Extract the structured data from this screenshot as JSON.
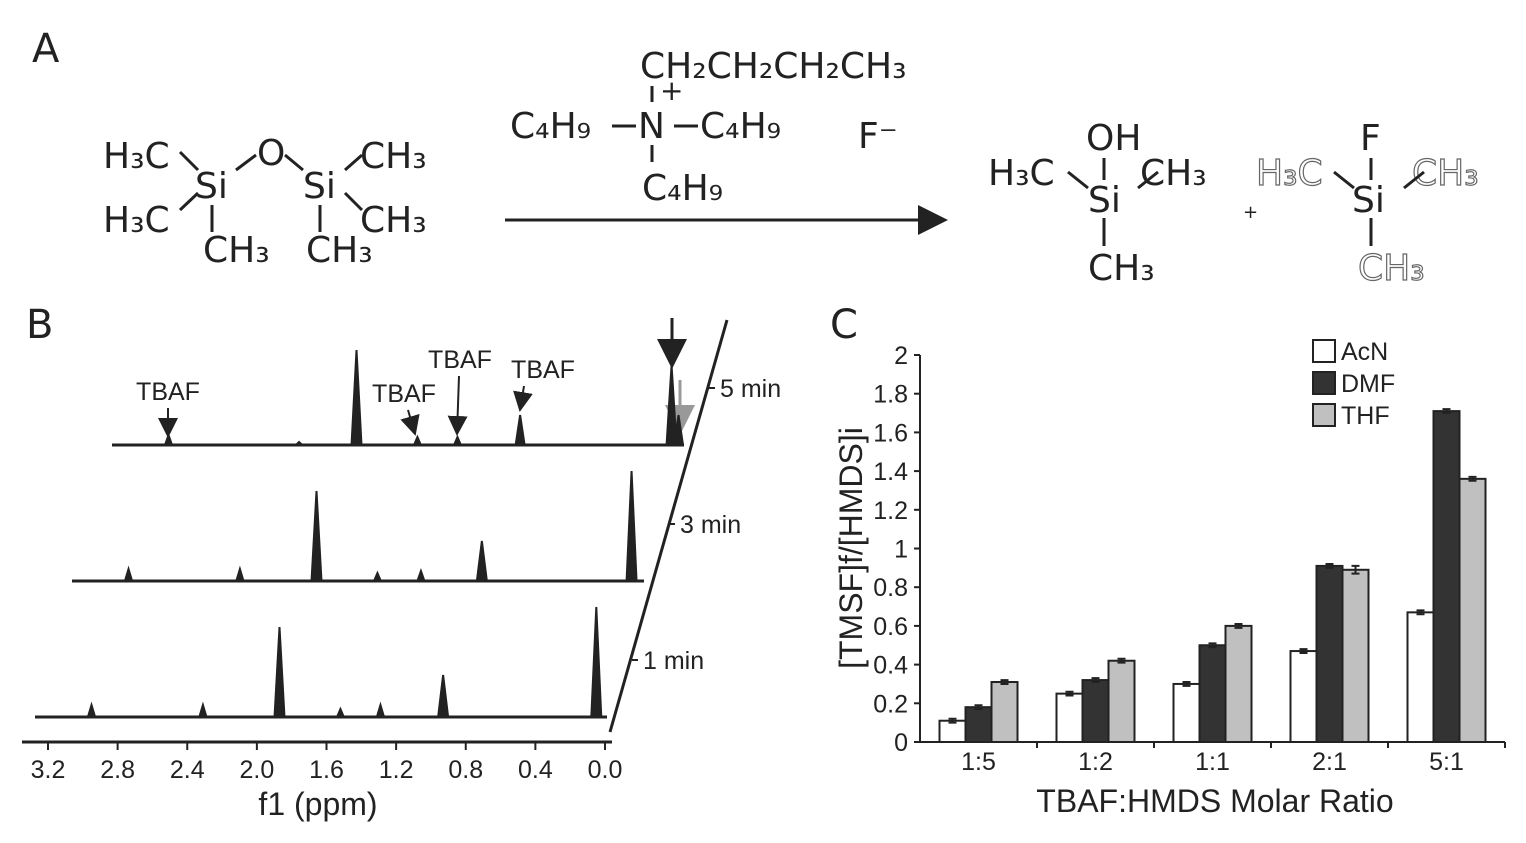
{
  "panel_a": {
    "label": "A",
    "hmds": [
      "H₃C",
      "H₃C",
      "CH₃",
      "Si",
      "O",
      "Si",
      "CH₃",
      "CH₃",
      "CH₃"
    ],
    "tbaf": [
      "CH₂CH₂CH₂CH₃",
      "+",
      "C₄H₉",
      "N",
      "C₄H₉",
      "C₄H₉",
      "F⁻"
    ],
    "tmsoh": [
      "OH",
      "H₃C",
      "Si",
      "CH₃",
      "CH₃"
    ],
    "plus": "+",
    "tmsf": [
      "F",
      "H₃C",
      "Si",
      "CH₃",
      "CH₃"
    ]
  },
  "panel_b": {
    "label": "B",
    "x_label": "f1 (ppm)",
    "xticks": [
      3.2,
      2.8,
      2.4,
      {
        "value": 2,
        "label": "2.0"
      },
      1.6,
      1.2,
      0.8,
      0.4,
      {
        "value": 0,
        "label": "0.0"
      }
    ],
    "annotations": [
      "TBAF",
      "TBAF",
      "TBAF",
      "TBAF"
    ],
    "spectra": [
      {
        "label": "1 min",
        "peaks": [
          {
            "ppm": 2.95,
            "height": 12
          },
          {
            "ppm": 2.31,
            "height": 12
          },
          {
            "ppm": 1.87,
            "height": 90
          },
          {
            "ppm": 1.52,
            "height": 8
          },
          {
            "ppm": 1.29,
            "height": 12
          },
          {
            "ppm": 0.93,
            "height": 42
          },
          {
            "ppm": 0.05,
            "height": 110
          }
        ]
      },
      {
        "label": "3 min",
        "peaks": [
          {
            "ppm": 2.95,
            "height": 12
          },
          {
            "ppm": 2.31,
            "height": 12
          },
          {
            "ppm": 1.87,
            "height": 90
          },
          {
            "ppm": 1.52,
            "height": 8
          },
          {
            "ppm": 1.27,
            "height": 10
          },
          {
            "ppm": 0.92,
            "height": 40
          },
          {
            "ppm": 0.06,
            "height": 110
          }
        ]
      },
      {
        "label": "5 min",
        "peaks": [
          {
            "ppm": 2.95,
            "height": 10
          },
          {
            "ppm": 2.2,
            "height": 3
          },
          {
            "ppm": 1.87,
            "height": 95
          },
          {
            "ppm": 1.52,
            "height": 8
          },
          {
            "ppm": 1.29,
            "height": 8
          },
          {
            "ppm": 0.93,
            "height": 30
          },
          {
            "ppm": 0.06,
            "height": 80
          },
          {
            "ppm": 0.02,
            "height": 30
          }
        ]
      }
    ]
  },
  "chart_data": {
    "type": "bar",
    "label": "C",
    "x_label": "TBAF:HMDS Molar Ratio",
    "y_label": "[TMSF]f/[HMDS]i",
    "categories": [
      "1:5",
      "1:2",
      "1:1",
      "2:1",
      "5:1"
    ],
    "series": [
      {
        "name": "AcN",
        "color": "#ffffff",
        "values": [
          0.11,
          0.25,
          0.3,
          0.47,
          0.67
        ],
        "errors": [
          0.01,
          0.01,
          0.01,
          0.01,
          0.01
        ]
      },
      {
        "name": "DMF",
        "color": "#333333",
        "values": [
          0.18,
          0.32,
          0.5,
          0.91,
          1.71
        ],
        "errors": [
          0.01,
          0.01,
          0.01,
          0.01,
          0.01
        ]
      },
      {
        "name": "THF",
        "color": "#c0c0c0",
        "values": [
          0.31,
          0.42,
          0.6,
          0.89,
          1.36
        ],
        "errors": [
          0.01,
          0.01,
          0.01,
          0.02,
          0.01
        ]
      }
    ],
    "ylim": [
      0,
      2
    ],
    "yticks": [
      0,
      0.2,
      0.4,
      0.6,
      0.8,
      1,
      1.2,
      1.4,
      1.6,
      1.8,
      2
    ],
    "legend": "top-right"
  }
}
